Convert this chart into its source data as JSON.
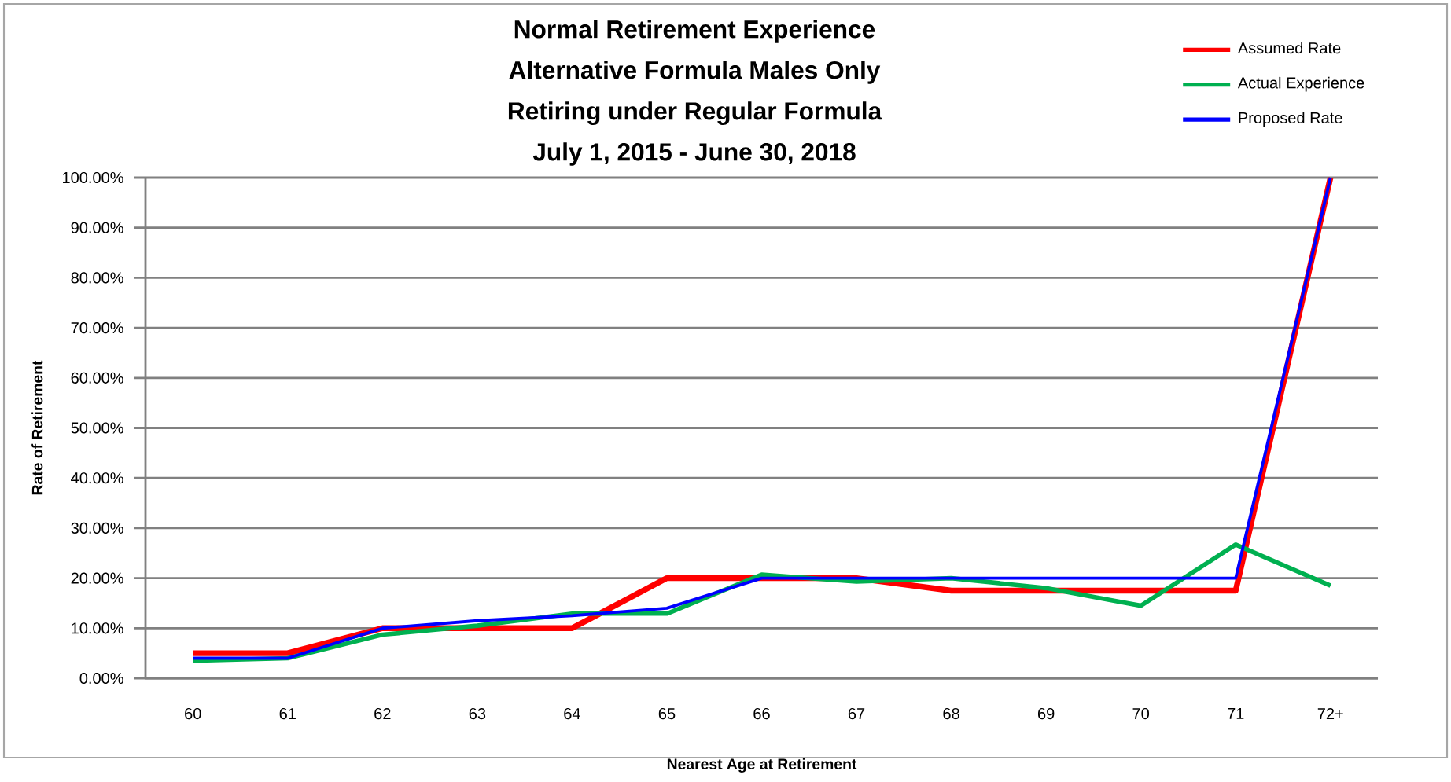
{
  "chart_data": {
    "type": "line",
    "title": "Normal Retirement Experience\nAlternative Formula Males Only\nRetiring under Regular Formula\nJuly 1, 2015 - June 30, 2018",
    "xlabel": "Nearest Age at Retirement",
    "ylabel": "Rate of Retirement",
    "categories": [
      "60",
      "61",
      "62",
      "63",
      "64",
      "65",
      "66",
      "67",
      "68",
      "69",
      "70",
      "71",
      "72+"
    ],
    "series": [
      {
        "name": "Assumed Rate",
        "color": "#ff0000",
        "values": [
          5,
          5,
          10,
          10,
          10,
          20,
          20,
          20,
          17.5,
          17.5,
          17.5,
          17.5,
          100
        ]
      },
      {
        "name": "Actual Experience",
        "color": "#00b050",
        "values": [
          3.5,
          4,
          8.7,
          10.5,
          12.9,
          12.9,
          20.7,
          19.3,
          20,
          18,
          14.5,
          26.7,
          18.5
        ]
      },
      {
        "name": "Proposed Rate",
        "color": "#0000ff",
        "values": [
          4,
          4,
          10,
          11.5,
          12.5,
          14,
          20,
          20,
          20,
          20,
          20,
          20,
          100
        ]
      }
    ],
    "ylim": [
      0,
      100
    ],
    "yticks": [
      {
        "value": 0,
        "label": "0.00%"
      },
      {
        "value": 10,
        "label": "10.00%"
      },
      {
        "value": 20,
        "label": "20.00%"
      },
      {
        "value": 30,
        "label": "30.00%"
      },
      {
        "value": 40,
        "label": "40.00%"
      },
      {
        "value": 50,
        "label": "50.00%"
      },
      {
        "value": 60,
        "label": "60.00%"
      },
      {
        "value": 70,
        "label": "70.00%"
      },
      {
        "value": 80,
        "label": "80.00%"
      },
      {
        "value": 90,
        "label": "90.00%"
      },
      {
        "value": 100,
        "label": "100.00%"
      }
    ],
    "grid": "y",
    "legend": "top right",
    "marker": "none",
    "line_style": "solid"
  }
}
